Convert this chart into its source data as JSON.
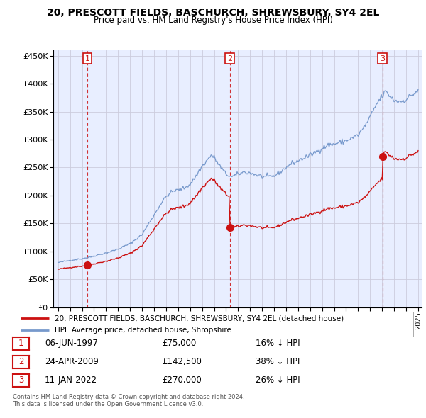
{
  "title": "20, PRESCOTT FIELDS, BASCHURCH, SHREWSBURY, SY4 2EL",
  "subtitle": "Price paid vs. HM Land Registry's House Price Index (HPI)",
  "legend_line1": "20, PRESCOTT FIELDS, BASCHURCH, SHREWSBURY, SY4 2EL (detached house)",
  "legend_line2": "HPI: Average price, detached house, Shropshire",
  "footer1": "Contains HM Land Registry data © Crown copyright and database right 2024.",
  "footer2": "This data is licensed under the Open Government Licence v3.0.",
  "transactions": [
    {
      "num": 1,
      "date": "06-JUN-1997",
      "price": 75000,
      "pct": "16%",
      "dir": "↓"
    },
    {
      "num": 2,
      "date": "24-APR-2009",
      "price": 142500,
      "pct": "38%",
      "dir": "↓"
    },
    {
      "num": 3,
      "date": "11-JAN-2022",
      "price": 270000,
      "pct": "26%",
      "dir": "↓"
    }
  ],
  "transaction_dates_year": [
    1997.44,
    2009.31,
    2022.03
  ],
  "transaction_prices": [
    75000,
    142500,
    270000
  ],
  "hpi_color": "#7799cc",
  "price_color": "#cc1111",
  "marker_box_color": "#cc1111",
  "ylim": [
    0,
    460000
  ],
  "yticks": [
    0,
    50000,
    100000,
    150000,
    200000,
    250000,
    300000,
    350000,
    400000,
    450000
  ],
  "grid_color": "#ccccdd",
  "background_color": "#ffffff",
  "plot_bg_color": "#e8eeff"
}
